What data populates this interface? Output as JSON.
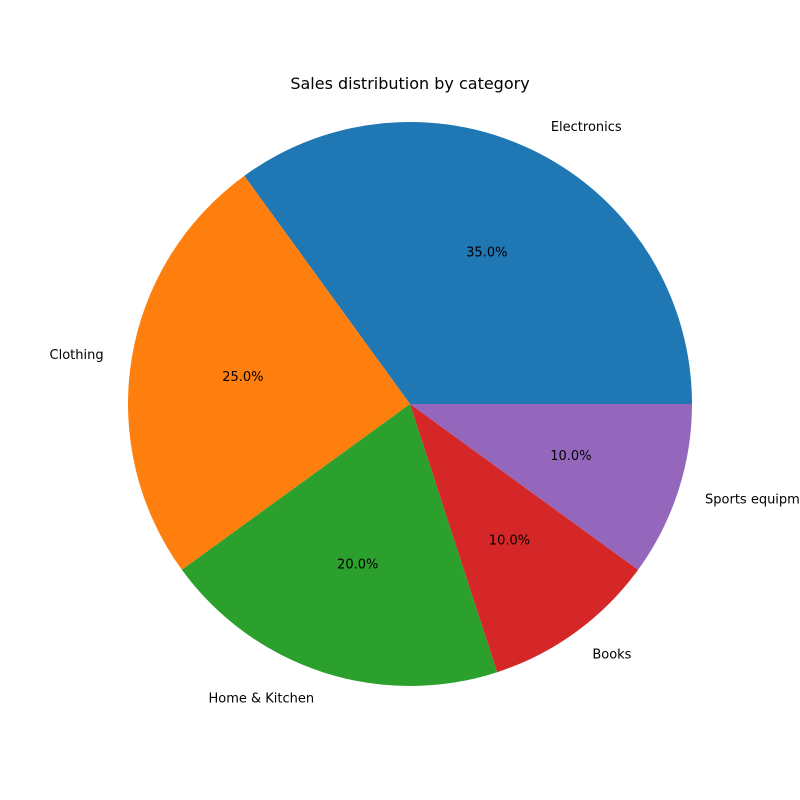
{
  "chart_data": {
    "type": "pie",
    "title": "Sales distribution by category",
    "categories": [
      "Electronics",
      "Clothing",
      "Home & Kitchen",
      "Books",
      "Sports equipment"
    ],
    "values": [
      35,
      25,
      20,
      10,
      10
    ],
    "percent_labels": [
      "35.0%",
      "25.0%",
      "20.0%",
      "10.0%",
      "10.0%"
    ],
    "colors": [
      "#1f77b4",
      "#ff7f0e",
      "#2ca02c",
      "#d62728",
      "#9467bd"
    ],
    "start_angle_deg": 0,
    "direction": "counterclockwise"
  }
}
